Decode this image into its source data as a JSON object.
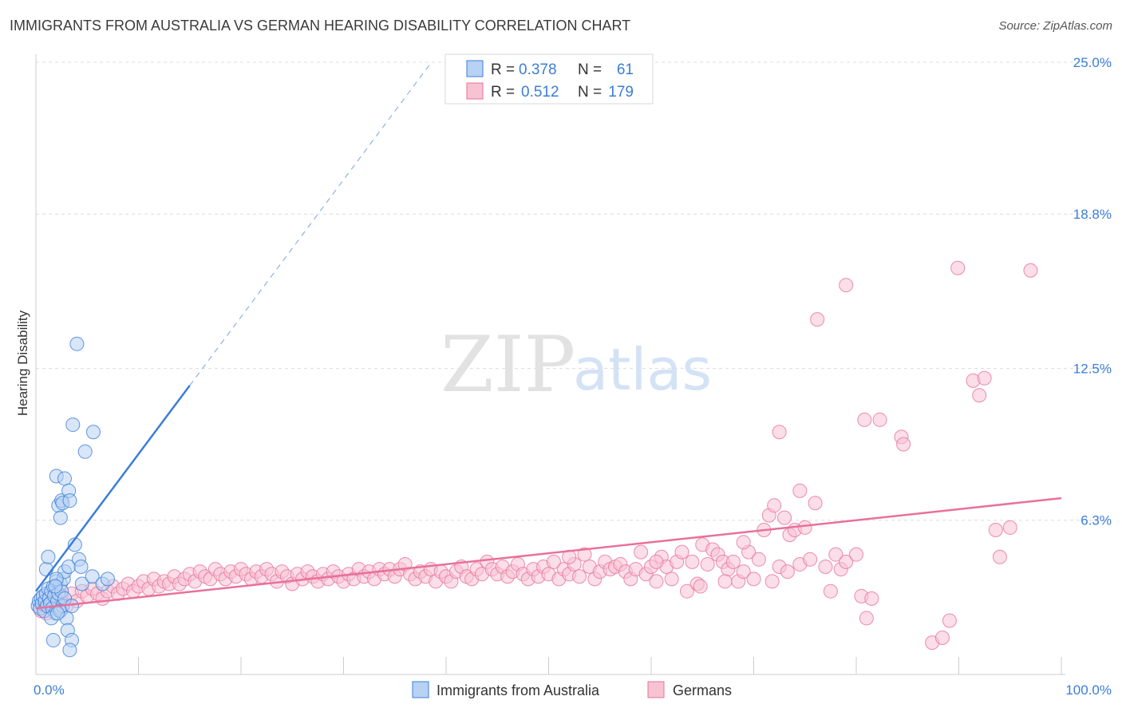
{
  "title": "IMMIGRANTS FROM AUSTRALIA VS GERMAN HEARING DISABILITY CORRELATION CHART",
  "source": "Source: ZipAtlas.com",
  "watermark": {
    "zip": "ZIP",
    "atlas": "atlas"
  },
  "colors": {
    "blue": "#3b7dd8",
    "blue_fill": "#b8d2f3",
    "pink": "#e8719a",
    "pink_fill": "#f7c3d3",
    "grid": "#dddddd"
  },
  "chart_data": {
    "type": "scatter",
    "title": "IMMIGRANTS FROM AUSTRALIA VS GERMAN HEARING DISABILITY CORRELATION CHART",
    "xlabel": "",
    "ylabel": "Hearing Disability",
    "xlim": [
      0,
      100
    ],
    "ylim": [
      0,
      25
    ],
    "x_tick_labels": [
      "0.0%",
      "100.0%"
    ],
    "y_ticks": [
      6.3,
      12.5,
      18.8,
      25.0
    ],
    "y_tick_labels": [
      "6.3%",
      "12.5%",
      "18.8%",
      "25.0%"
    ],
    "grid": true,
    "legend_placement": "top-center",
    "legend": [
      {
        "r_label": "R =",
        "r_value": "0.378",
        "n_label": "N =",
        "n_value": "61"
      },
      {
        "r_label": "R =",
        "r_value": "0.512",
        "n_label": "N =",
        "n_value": "179"
      }
    ],
    "series": [
      {
        "name": "Immigrants from Australia",
        "color": "#3b7dd8",
        "trend": {
          "x0": 0.0,
          "y0": 3.4,
          "x1": 15.0,
          "y1": 11.8,
          "dash_to_x": 38.5
        },
        "points": [
          [
            0.2,
            2.8
          ],
          [
            0.3,
            3.0
          ],
          [
            0.4,
            2.7
          ],
          [
            0.5,
            3.1
          ],
          [
            0.6,
            2.9
          ],
          [
            0.7,
            3.2
          ],
          [
            0.8,
            2.6
          ],
          [
            0.9,
            3.0
          ],
          [
            1.0,
            3.3
          ],
          [
            1.1,
            2.8
          ],
          [
            1.2,
            3.5
          ],
          [
            1.3,
            3.1
          ],
          [
            1.4,
            2.9
          ],
          [
            1.5,
            3.4
          ],
          [
            1.6,
            2.7
          ],
          [
            1.7,
            3.6
          ],
          [
            1.8,
            3.2
          ],
          [
            1.9,
            2.5
          ],
          [
            2.0,
            3.8
          ],
          [
            2.1,
            3.0
          ],
          [
            2.2,
            3.3
          ],
          [
            2.3,
            2.6
          ],
          [
            2.4,
            3.7
          ],
          [
            2.5,
            3.4
          ],
          [
            2.6,
            2.8
          ],
          [
            2.7,
            3.9
          ],
          [
            2.8,
            3.1
          ],
          [
            1.0,
            4.3
          ],
          [
            1.2,
            4.8
          ],
          [
            1.5,
            2.3
          ],
          [
            1.7,
            1.4
          ],
          [
            2.4,
            2.6
          ],
          [
            2.0,
            8.1
          ],
          [
            2.2,
            6.9
          ],
          [
            2.4,
            6.4
          ],
          [
            2.5,
            7.1
          ],
          [
            2.6,
            7.0
          ],
          [
            2.8,
            8.0
          ],
          [
            2.8,
            4.2
          ],
          [
            3.0,
            2.3
          ],
          [
            3.1,
            1.8
          ],
          [
            3.2,
            7.5
          ],
          [
            3.3,
            7.1
          ],
          [
            3.5,
            1.4
          ],
          [
            3.2,
            4.4
          ],
          [
            2.0,
            3.9
          ],
          [
            2.1,
            2.5
          ],
          [
            1.9,
            3.6
          ],
          [
            3.3,
            1.0
          ],
          [
            3.5,
            2.8
          ],
          [
            3.8,
            5.3
          ],
          [
            4.2,
            4.7
          ],
          [
            4.4,
            4.4
          ],
          [
            4.5,
            3.7
          ],
          [
            3.6,
            10.2
          ],
          [
            5.5,
            4.0
          ],
          [
            4.0,
            13.5
          ],
          [
            4.8,
            9.1
          ],
          [
            5.6,
            9.9
          ],
          [
            6.5,
            3.7
          ],
          [
            7.0,
            3.9
          ]
        ]
      },
      {
        "name": "Germans",
        "color": "#e8719a",
        "trend": {
          "x0": 0.0,
          "y0": 2.7,
          "x1": 100.0,
          "y1": 7.2
        },
        "points": [
          [
            0.5,
            2.6
          ],
          [
            1.0,
            2.5
          ],
          [
            1.5,
            2.8
          ],
          [
            2.0,
            3.0
          ],
          [
            2.5,
            3.2
          ],
          [
            3.0,
            2.8
          ],
          [
            3.5,
            3.3
          ],
          [
            4.0,
            3.0
          ],
          [
            4.5,
            3.4
          ],
          [
            5.0,
            3.2
          ],
          [
            5.5,
            3.5
          ],
          [
            6.0,
            3.3
          ],
          [
            6.5,
            3.1
          ],
          [
            7.0,
            3.4
          ],
          [
            7.5,
            3.6
          ],
          [
            8.0,
            3.3
          ],
          [
            8.5,
            3.5
          ],
          [
            9.0,
            3.7
          ],
          [
            9.5,
            3.4
          ],
          [
            10.0,
            3.6
          ],
          [
            10.5,
            3.8
          ],
          [
            11.0,
            3.5
          ],
          [
            11.5,
            3.9
          ],
          [
            12.0,
            3.6
          ],
          [
            12.5,
            3.8
          ],
          [
            13.0,
            3.7
          ],
          [
            13.5,
            4.0
          ],
          [
            14.0,
            3.7
          ],
          [
            14.5,
            3.9
          ],
          [
            15.0,
            4.1
          ],
          [
            15.5,
            3.8
          ],
          [
            16.0,
            4.2
          ],
          [
            16.5,
            4.0
          ],
          [
            17.0,
            3.9
          ],
          [
            17.5,
            4.3
          ],
          [
            18.0,
            4.1
          ],
          [
            18.5,
            3.9
          ],
          [
            19.0,
            4.2
          ],
          [
            19.5,
            4.0
          ],
          [
            20.0,
            4.3
          ],
          [
            20.5,
            4.1
          ],
          [
            21.0,
            3.9
          ],
          [
            21.5,
            4.2
          ],
          [
            22.0,
            4.0
          ],
          [
            22.5,
            4.3
          ],
          [
            23.0,
            4.1
          ],
          [
            23.5,
            3.8
          ],
          [
            24.0,
            4.2
          ],
          [
            24.5,
            4.0
          ],
          [
            25.0,
            3.7
          ],
          [
            25.5,
            4.1
          ],
          [
            26.0,
            3.9
          ],
          [
            26.5,
            4.2
          ],
          [
            27.0,
            4.0
          ],
          [
            27.5,
            3.8
          ],
          [
            28.0,
            4.1
          ],
          [
            28.5,
            3.9
          ],
          [
            29.0,
            4.2
          ],
          [
            29.5,
            4.0
          ],
          [
            30.0,
            3.8
          ],
          [
            30.5,
            4.1
          ],
          [
            31.0,
            3.9
          ],
          [
            31.5,
            4.3
          ],
          [
            32.0,
            4.0
          ],
          [
            32.5,
            4.2
          ],
          [
            33.0,
            3.9
          ],
          [
            33.5,
            4.3
          ],
          [
            34.0,
            4.1
          ],
          [
            34.5,
            4.3
          ],
          [
            35.0,
            4.0
          ],
          [
            35.5,
            4.3
          ],
          [
            36.0,
            4.5
          ],
          [
            36.5,
            4.1
          ],
          [
            37.0,
            3.9
          ],
          [
            37.5,
            4.2
          ],
          [
            38.0,
            4.0
          ],
          [
            38.5,
            4.3
          ],
          [
            39.0,
            3.8
          ],
          [
            39.5,
            4.2
          ],
          [
            40.0,
            4.0
          ],
          [
            40.5,
            3.8
          ],
          [
            41.0,
            4.2
          ],
          [
            41.5,
            4.4
          ],
          [
            42.0,
            4.0
          ],
          [
            42.5,
            3.9
          ],
          [
            43.0,
            4.3
          ],
          [
            43.5,
            4.1
          ],
          [
            44.0,
            4.6
          ],
          [
            44.5,
            4.3
          ],
          [
            45.0,
            4.1
          ],
          [
            45.5,
            4.4
          ],
          [
            46.0,
            4.0
          ],
          [
            46.5,
            4.2
          ],
          [
            47.0,
            4.5
          ],
          [
            47.5,
            4.1
          ],
          [
            48.0,
            3.9
          ],
          [
            48.5,
            4.3
          ],
          [
            49.0,
            4.0
          ],
          [
            49.5,
            4.4
          ],
          [
            50.0,
            4.1
          ],
          [
            50.5,
            4.6
          ],
          [
            51.0,
            3.9
          ],
          [
            51.5,
            4.3
          ],
          [
            52.0,
            4.1
          ],
          [
            52.5,
            4.5
          ],
          [
            53.0,
            4.0
          ],
          [
            53.5,
            4.9
          ],
          [
            54.0,
            4.4
          ],
          [
            54.5,
            3.9
          ],
          [
            55.0,
            4.2
          ],
          [
            55.5,
            4.6
          ],
          [
            56.0,
            4.3
          ],
          [
            56.5,
            4.4
          ],
          [
            57.0,
            4.5
          ],
          [
            57.5,
            4.2
          ],
          [
            58.0,
            3.9
          ],
          [
            58.5,
            4.3
          ],
          [
            59.0,
            5.0
          ],
          [
            59.5,
            4.1
          ],
          [
            60.0,
            4.4
          ],
          [
            60.5,
            3.8
          ],
          [
            61.0,
            4.8
          ],
          [
            61.5,
            4.4
          ],
          [
            62.0,
            3.9
          ],
          [
            62.5,
            4.6
          ],
          [
            63.0,
            5.0
          ],
          [
            63.5,
            3.4
          ],
          [
            64.0,
            4.6
          ],
          [
            64.5,
            3.7
          ],
          [
            65.0,
            5.3
          ],
          [
            65.5,
            4.5
          ],
          [
            66.0,
            5.1
          ],
          [
            66.5,
            4.9
          ],
          [
            67.0,
            4.6
          ],
          [
            67.5,
            4.3
          ],
          [
            68.0,
            4.6
          ],
          [
            68.5,
            3.8
          ],
          [
            69.0,
            4.2
          ],
          [
            69.5,
            5.0
          ],
          [
            70.0,
            3.9
          ],
          [
            70.5,
            4.7
          ],
          [
            71.0,
            5.9
          ],
          [
            71.5,
            6.5
          ],
          [
            72.0,
            6.9
          ],
          [
            72.5,
            4.4
          ],
          [
            73.0,
            6.4
          ],
          [
            73.5,
            5.7
          ],
          [
            74.0,
            5.9
          ],
          [
            74.5,
            7.5
          ],
          [
            75.0,
            6.0
          ],
          [
            76.0,
            7.0
          ],
          [
            77.0,
            4.4
          ],
          [
            77.5,
            3.4
          ],
          [
            78.0,
            4.9
          ],
          [
            78.5,
            4.3
          ],
          [
            79.0,
            4.6
          ],
          [
            80.0,
            4.9
          ],
          [
            80.5,
            3.2
          ],
          [
            81.0,
            2.3
          ],
          [
            81.5,
            3.1
          ],
          [
            74.5,
            4.5
          ],
          [
            75.5,
            4.7
          ],
          [
            72.5,
            9.9
          ],
          [
            76.2,
            14.5
          ],
          [
            80.8,
            10.4
          ],
          [
            82.3,
            10.4
          ],
          [
            84.4,
            9.7
          ],
          [
            84.6,
            9.4
          ],
          [
            79.0,
            15.9
          ],
          [
            91.4,
            12.0
          ],
          [
            92.0,
            11.4
          ],
          [
            92.5,
            12.1
          ],
          [
            87.4,
            1.3
          ],
          [
            88.4,
            1.5
          ],
          [
            89.1,
            2.2
          ],
          [
            93.6,
            5.9
          ],
          [
            94.0,
            4.8
          ],
          [
            95.0,
            6.0
          ],
          [
            97.0,
            16.5
          ],
          [
            89.9,
            16.6
          ],
          [
            73.3,
            4.2
          ],
          [
            52.0,
            4.8
          ],
          [
            64.8,
            3.6
          ],
          [
            71.8,
            3.8
          ],
          [
            67.2,
            3.8
          ],
          [
            69.0,
            5.4
          ],
          [
            60.5,
            4.6
          ]
        ]
      }
    ]
  }
}
